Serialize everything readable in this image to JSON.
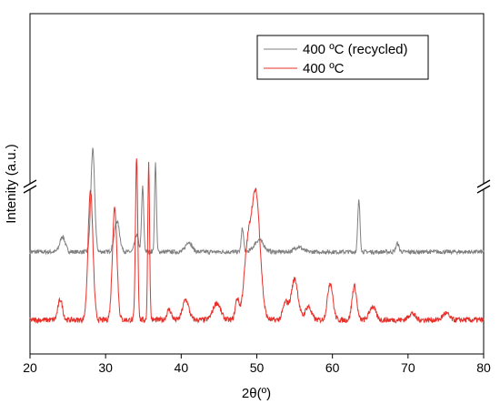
{
  "chart_data": {
    "type": "line",
    "xlabel": "2θ(º)",
    "ylabel": "Intenity (a.u.)",
    "xlim": [
      20,
      80
    ],
    "x_ticks": [
      20,
      30,
      40,
      50,
      60,
      70,
      80
    ],
    "y_ticks_shown": false,
    "y_axis_break": true,
    "grid": false,
    "legend_position": "top-right",
    "series": [
      {
        "name": "400 ºC (recycled)",
        "color": "#808080",
        "baseline": 0.3,
        "noise": 0.006,
        "peaks": [
          {
            "x": 24.3,
            "h": 0.045,
            "w": 0.35
          },
          {
            "x": 28.3,
            "h": 0.3,
            "w": 0.25
          },
          {
            "x": 31.5,
            "h": 0.09,
            "w": 0.35
          },
          {
            "x": 34.1,
            "h": 0.05,
            "w": 0.25
          },
          {
            "x": 34.9,
            "h": 0.19,
            "w": 0.14
          },
          {
            "x": 36.6,
            "h": 0.26,
            "w": 0.12
          },
          {
            "x": 41.0,
            "h": 0.03,
            "w": 0.4
          },
          {
            "x": 48.1,
            "h": 0.07,
            "w": 0.15
          },
          {
            "x": 50.3,
            "h": 0.035,
            "w": 0.6
          },
          {
            "x": 55.5,
            "h": 0.015,
            "w": 0.5
          },
          {
            "x": 63.5,
            "h": 0.15,
            "w": 0.15
          },
          {
            "x": 68.6,
            "h": 0.025,
            "w": 0.2
          }
        ]
      },
      {
        "name": "400 ºC",
        "color": "#e8302a",
        "baseline": 0.1,
        "noise": 0.008,
        "peaks": [
          {
            "x": 24.0,
            "h": 0.06,
            "w": 0.3
          },
          {
            "x": 28.0,
            "h": 0.38,
            "w": 0.32
          },
          {
            "x": 31.2,
            "h": 0.33,
            "w": 0.3
          },
          {
            "x": 34.1,
            "h": 0.48,
            "w": 0.15
          },
          {
            "x": 35.7,
            "h": 0.46,
            "w": 0.12
          },
          {
            "x": 38.4,
            "h": 0.03,
            "w": 0.3
          },
          {
            "x": 40.6,
            "h": 0.06,
            "w": 0.4
          },
          {
            "x": 44.7,
            "h": 0.05,
            "w": 0.5
          },
          {
            "x": 47.4,
            "h": 0.06,
            "w": 0.25
          },
          {
            "x": 48.8,
            "h": 0.2,
            "w": 0.5
          },
          {
            "x": 49.9,
            "h": 0.36,
            "w": 0.55
          },
          {
            "x": 53.8,
            "h": 0.05,
            "w": 0.35
          },
          {
            "x": 55.0,
            "h": 0.12,
            "w": 0.45
          },
          {
            "x": 56.8,
            "h": 0.04,
            "w": 0.4
          },
          {
            "x": 59.7,
            "h": 0.11,
            "w": 0.35
          },
          {
            "x": 62.9,
            "h": 0.1,
            "w": 0.3
          },
          {
            "x": 65.3,
            "h": 0.04,
            "w": 0.4
          },
          {
            "x": 70.5,
            "h": 0.02,
            "w": 0.4
          },
          {
            "x": 75.0,
            "h": 0.02,
            "w": 0.4
          }
        ]
      }
    ]
  }
}
